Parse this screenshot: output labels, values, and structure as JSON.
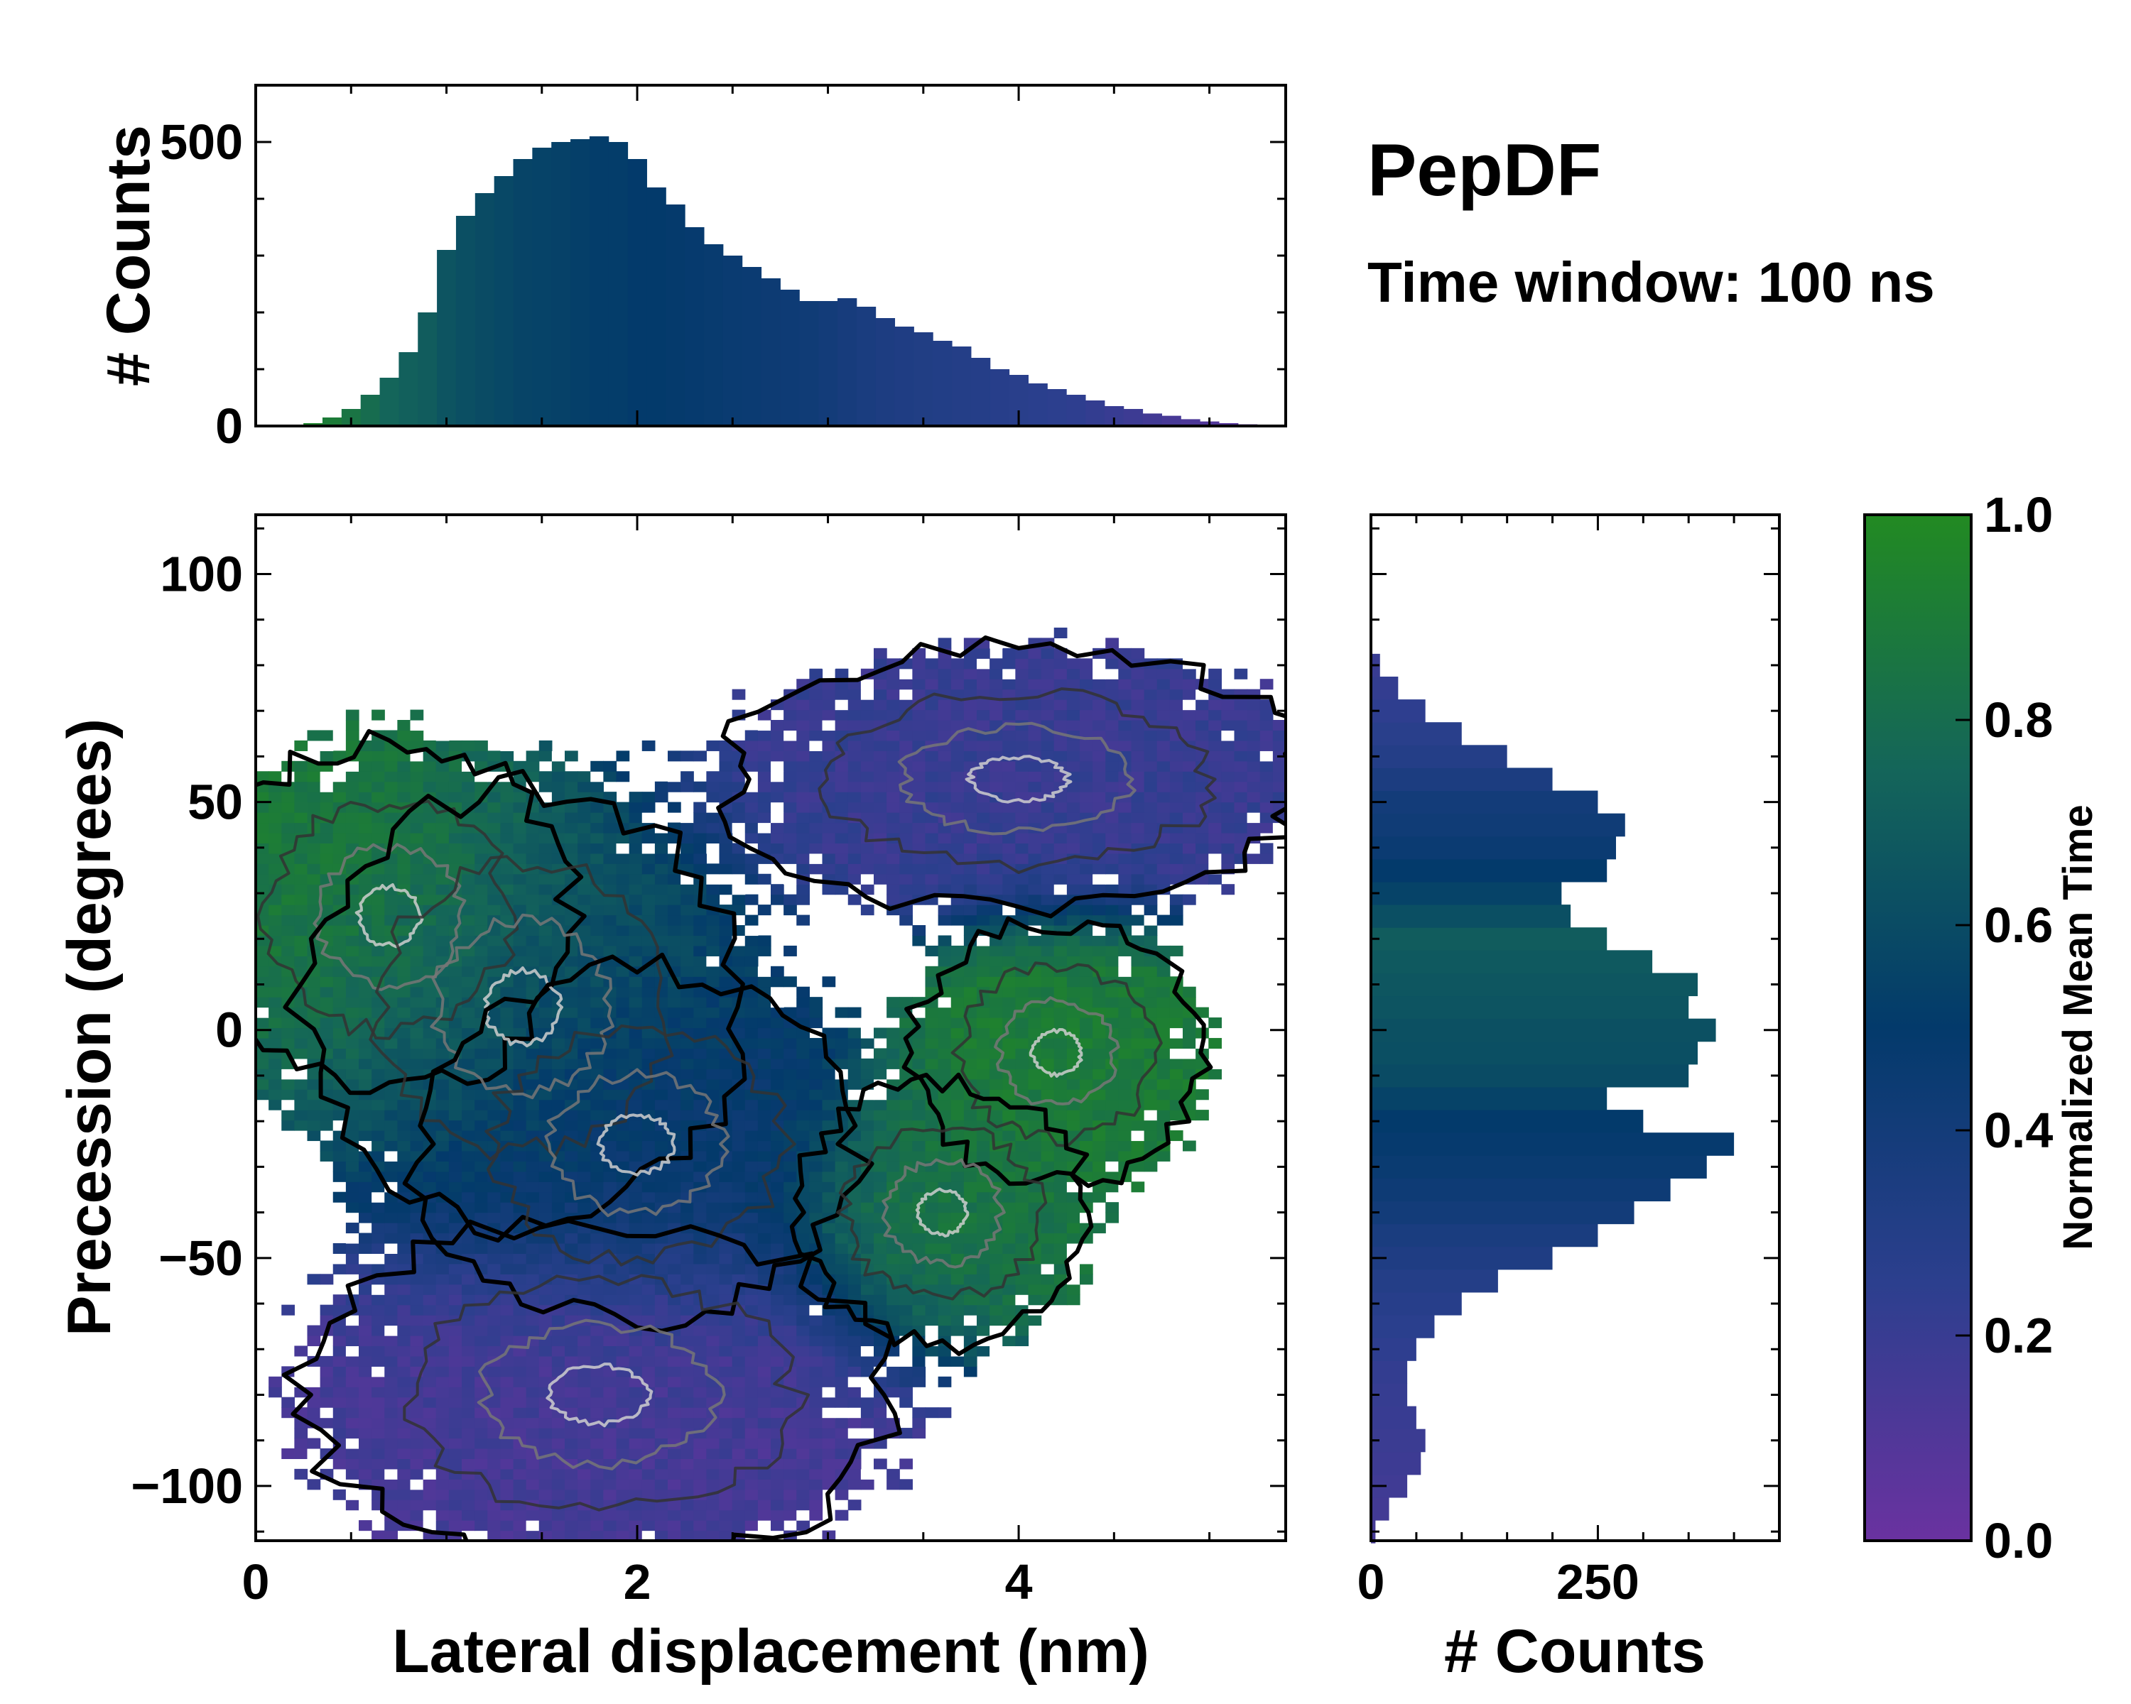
{
  "figure": {
    "title": "PepDF",
    "subtitle": "Time window: 100 ns"
  },
  "colors": {
    "cmap_low": "#6a32a0",
    "cmap_quarter": "#2c3f8e",
    "cmap_mid": "#033a6b",
    "cmap_three_quarter": "#14655a",
    "cmap_high": "#228a22",
    "contour_outer": "#000000",
    "contour_inner": "#e0e0e0",
    "empty_bin": "#ffffff"
  },
  "chart_data": [
    {
      "id": "top-histogram",
      "type": "bar",
      "title": "",
      "xlabel": "",
      "ylabel": "# Counts",
      "xlim": [
        0,
        5.4
      ],
      "ylim": [
        0,
        600
      ],
      "yticks": [
        0,
        500
      ],
      "ytick_labels": [
        "0",
        "500"
      ],
      "x": [
        0.3,
        0.4,
        0.5,
        0.6,
        0.7,
        0.8,
        0.9,
        1.0,
        1.1,
        1.2,
        1.3,
        1.4,
        1.5,
        1.6,
        1.7,
        1.8,
        1.9,
        2.0,
        2.1,
        2.2,
        2.3,
        2.4,
        2.5,
        2.6,
        2.7,
        2.8,
        2.9,
        3.0,
        3.1,
        3.2,
        3.3,
        3.4,
        3.5,
        3.6,
        3.7,
        3.8,
        3.9,
        4.0,
        4.1,
        4.2,
        4.3,
        4.4,
        4.5,
        4.6,
        4.7,
        4.8,
        4.9,
        5.0,
        5.1,
        5.2
      ],
      "values": [
        5,
        15,
        30,
        55,
        85,
        130,
        200,
        310,
        370,
        410,
        440,
        470,
        490,
        500,
        505,
        510,
        500,
        470,
        420,
        390,
        350,
        320,
        300,
        280,
        260,
        240,
        220,
        220,
        225,
        210,
        190,
        175,
        165,
        150,
        140,
        120,
        100,
        90,
        75,
        65,
        55,
        45,
        35,
        30,
        22,
        18,
        12,
        8,
        5,
        3
      ],
      "color_values": [
        0.95,
        0.9,
        0.85,
        0.8,
        0.75,
        0.72,
        0.7,
        0.65,
        0.62,
        0.6,
        0.58,
        0.56,
        0.55,
        0.54,
        0.53,
        0.52,
        0.52,
        0.5,
        0.5,
        0.49,
        0.48,
        0.47,
        0.46,
        0.45,
        0.44,
        0.43,
        0.42,
        0.4,
        0.38,
        0.36,
        0.34,
        0.33,
        0.32,
        0.31,
        0.3,
        0.29,
        0.28,
        0.27,
        0.26,
        0.25,
        0.24,
        0.22,
        0.2,
        0.18,
        0.16,
        0.14,
        0.12,
        0.1,
        0.08,
        0.06
      ]
    },
    {
      "id": "main-heatmap",
      "type": "heatmap",
      "title": "",
      "xlabel": "Lateral displacement (nm)",
      "ylabel": "Precession (degrees)",
      "xlim": [
        0,
        5.4
      ],
      "ylim": [
        -112,
        113
      ],
      "xticks": [
        0,
        2,
        4
      ],
      "xtick_labels": [
        "0",
        "2",
        "4"
      ],
      "yticks": [
        -100,
        -50,
        0,
        50,
        100
      ],
      "ytick_labels": [
        "−100",
        "−50",
        "0",
        "50",
        "100"
      ],
      "colorbar": {
        "label": "Normalized Mean Time",
        "range": [
          0.0,
          1.0
        ],
        "ticks": [
          0.0,
          0.2,
          0.4,
          0.6,
          0.8,
          1.0
        ],
        "tick_labels": [
          "0.0",
          "0.2",
          "0.4",
          "0.6",
          "0.8",
          "1.0"
        ]
      },
      "regions": [
        {
          "name": "upper-left green",
          "center": [
            0.7,
            25
          ],
          "spread": [
            0.5,
            20
          ],
          "mean_time": 0.9
        },
        {
          "name": "central dense core",
          "center": [
            1.4,
            5
          ],
          "spread": [
            0.6,
            25
          ],
          "mean_time": 0.6
        },
        {
          "name": "second dense core",
          "center": [
            2.0,
            -25
          ],
          "spread": [
            0.6,
            20
          ],
          "mean_time": 0.45
        },
        {
          "name": "right green lobe",
          "center": [
            4.2,
            -5
          ],
          "spread": [
            0.4,
            15
          ],
          "mean_time": 0.9
        },
        {
          "name": "lower-right green lobe",
          "center": [
            3.6,
            -40
          ],
          "spread": [
            0.4,
            15
          ],
          "mean_time": 0.85
        },
        {
          "name": "upper-right purple",
          "center": [
            4.0,
            55
          ],
          "spread": [
            0.8,
            15
          ],
          "mean_time": 0.2
        },
        {
          "name": "lower purple",
          "center": [
            1.8,
            -80
          ],
          "spread": [
            0.8,
            20
          ],
          "mean_time": 0.15
        }
      ]
    },
    {
      "id": "right-histogram",
      "type": "bar",
      "orientation": "horizontal",
      "title": "",
      "xlabel": "# Counts",
      "ylabel": "",
      "xlim": [
        0,
        450
      ],
      "ylim": [
        -112,
        113
      ],
      "xticks": [
        0,
        250
      ],
      "xtick_labels": [
        "0",
        "250"
      ],
      "y": [
        -110,
        -105,
        -100,
        -95,
        -90,
        -85,
        -80,
        -75,
        -70,
        -65,
        -60,
        -55,
        -50,
        -45,
        -40,
        -35,
        -30,
        -25,
        -20,
        -15,
        -10,
        -5,
        0,
        5,
        10,
        15,
        20,
        25,
        30,
        35,
        40,
        45,
        50,
        55,
        60,
        65,
        70,
        75,
        80
      ],
      "values": [
        5,
        20,
        40,
        55,
        60,
        50,
        40,
        40,
        50,
        70,
        100,
        140,
        200,
        250,
        290,
        330,
        370,
        400,
        300,
        260,
        350,
        360,
        380,
        350,
        360,
        310,
        260,
        220,
        210,
        260,
        270,
        280,
        250,
        200,
        150,
        100,
        60,
        30,
        10
      ],
      "color_values": [
        0.15,
        0.16,
        0.17,
        0.18,
        0.19,
        0.2,
        0.21,
        0.22,
        0.24,
        0.26,
        0.28,
        0.3,
        0.33,
        0.36,
        0.4,
        0.43,
        0.46,
        0.48,
        0.5,
        0.55,
        0.6,
        0.62,
        0.63,
        0.65,
        0.66,
        0.68,
        0.7,
        0.62,
        0.55,
        0.5,
        0.45,
        0.42,
        0.4,
        0.35,
        0.3,
        0.27,
        0.24,
        0.22,
        0.2
      ]
    }
  ]
}
